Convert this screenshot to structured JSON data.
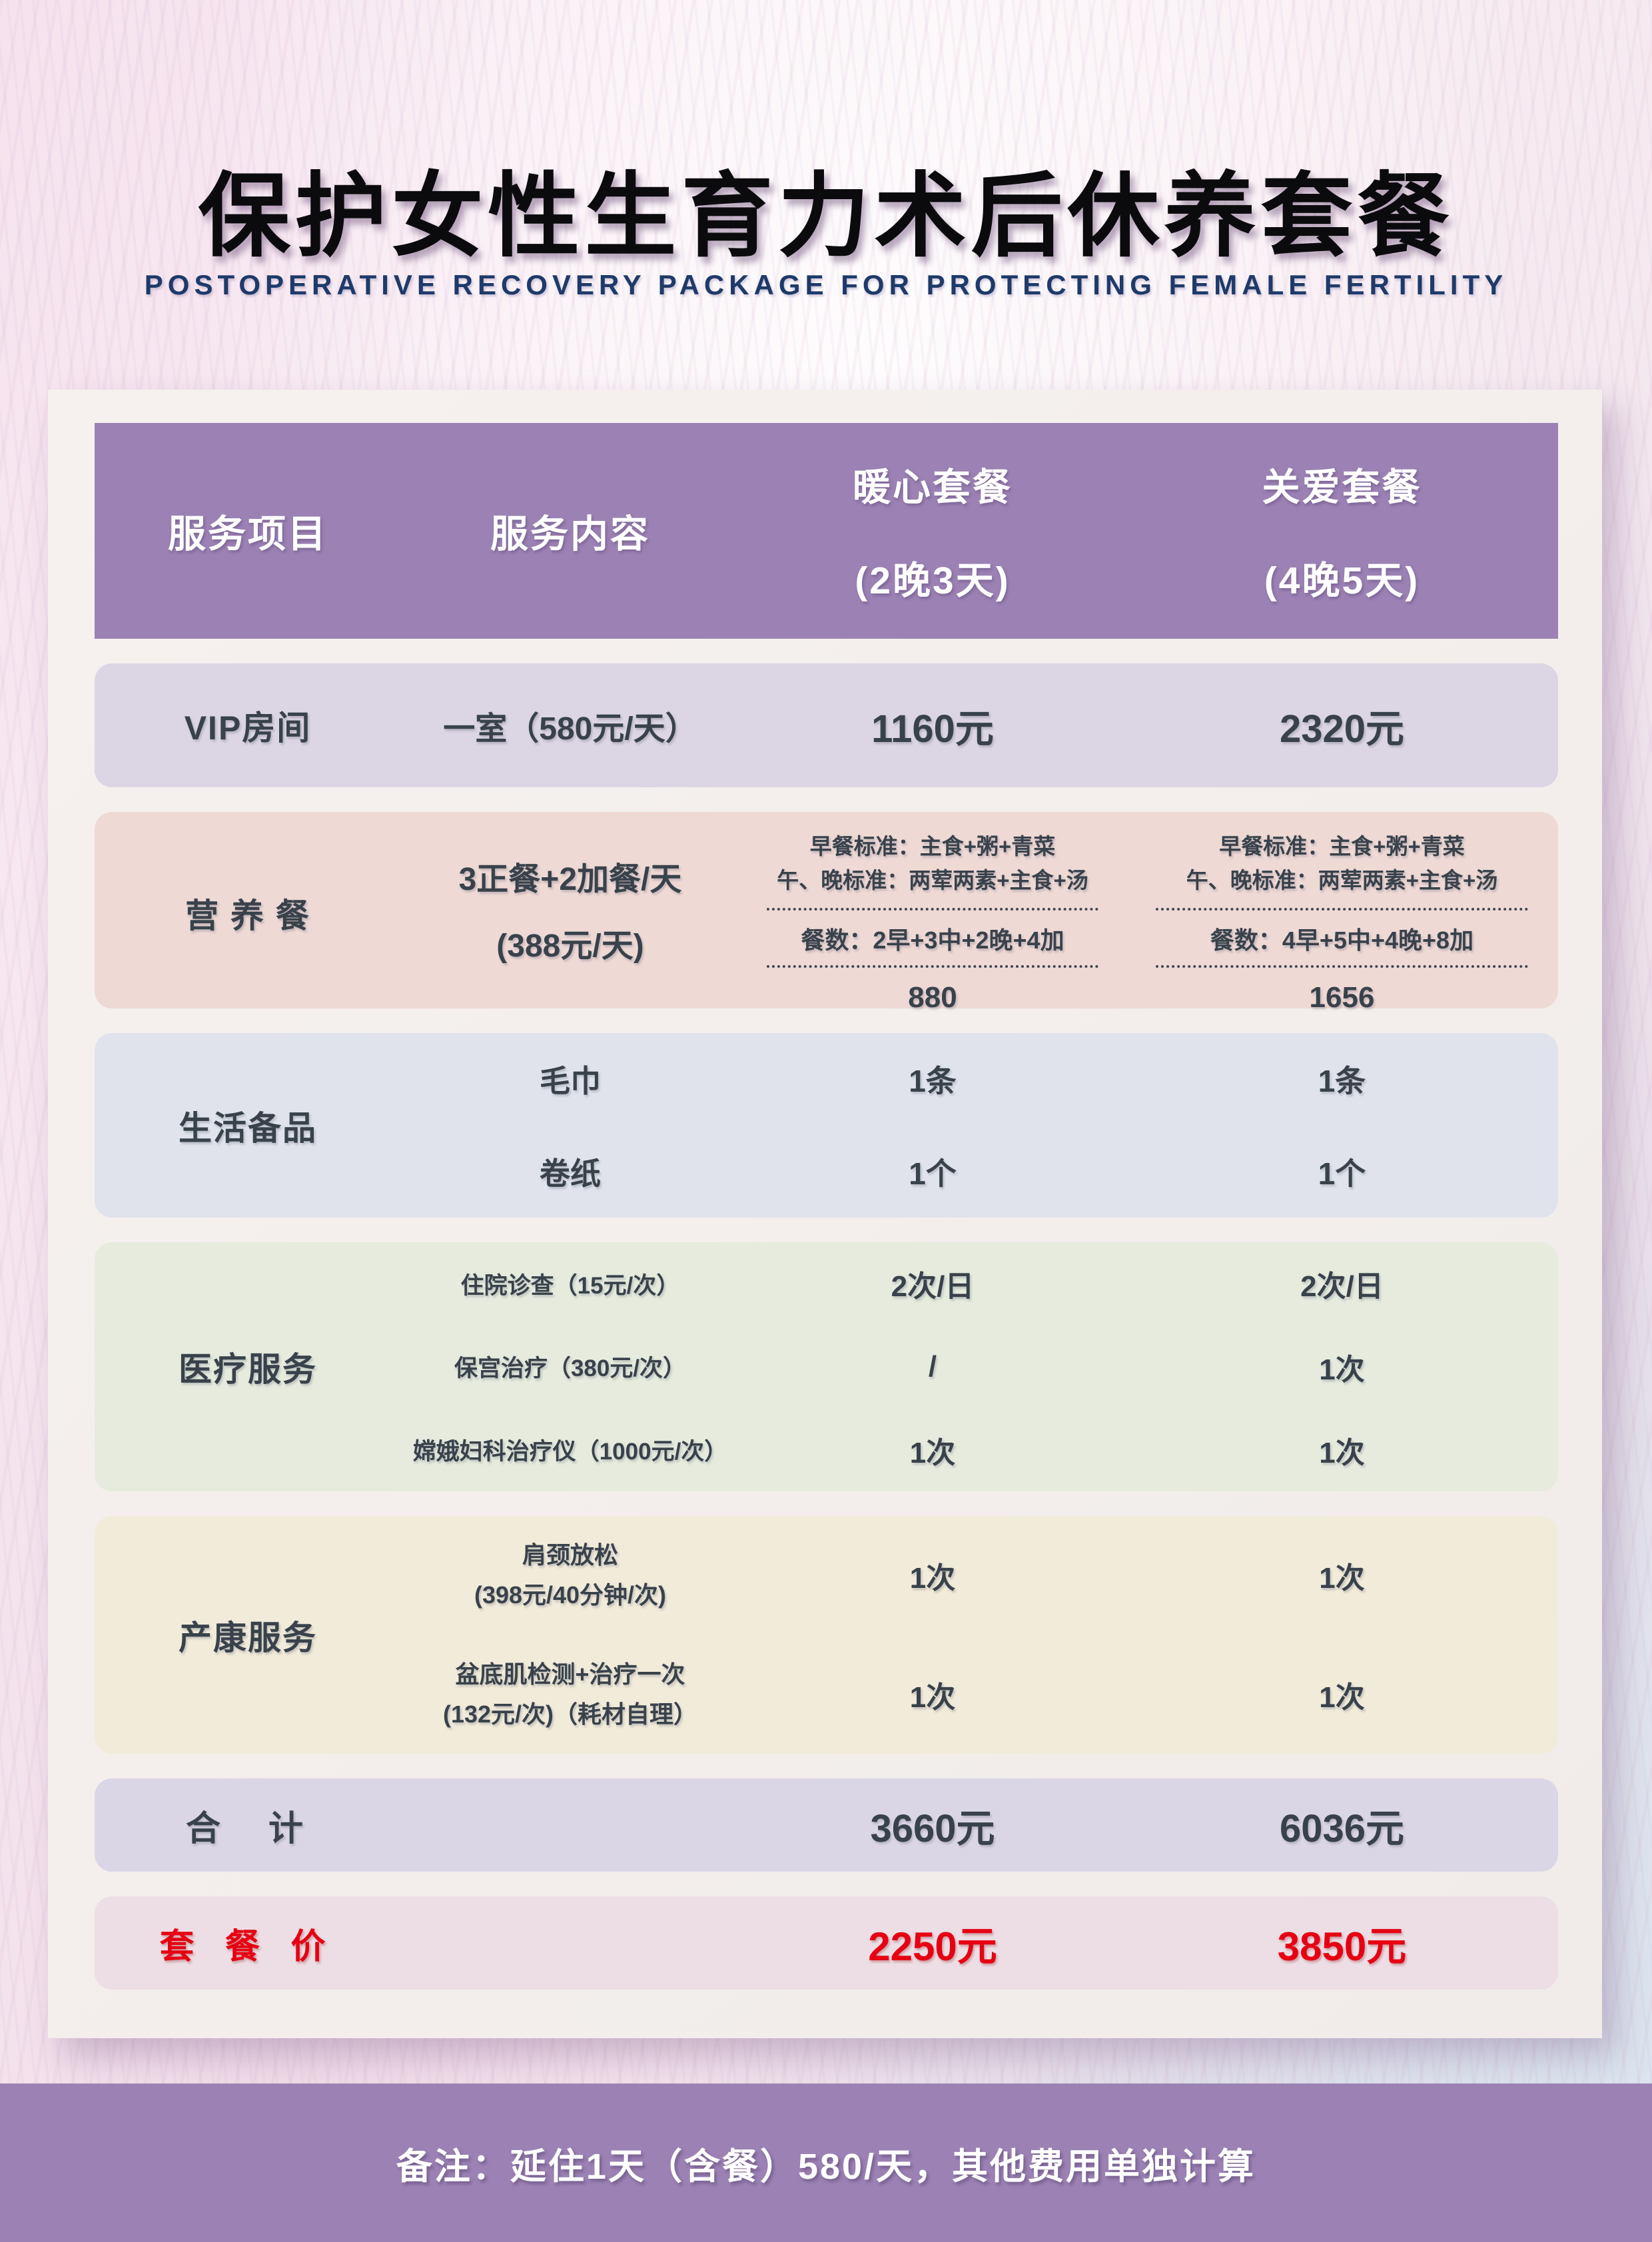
{
  "page": {
    "title": "保护女性生育力术后休养套餐",
    "subtitle": "POSTOPERATIVE RECOVERY PACKAGE FOR PROTECTING FEMALE FERTILITY",
    "note": "备注：延住1天（含餐）580/天，其他费用单独计算"
  },
  "colors": {
    "header_purple": "#9c82b4",
    "footer_purple": "#9c82b4",
    "accent_red": "#e60012",
    "text_dark": "#39424b",
    "subtitle_navy": "#1e3a69",
    "row_vip": "#dbd5e4",
    "row_meal": "#eed9d5",
    "row_daily": "#e0e3ec",
    "row_medical": "#e6ebde",
    "row_postpartum": "#f1ebda",
    "row_total": "#dbd6e6",
    "row_price": "#ecdee4"
  },
  "table": {
    "headers": [
      "服务项目",
      "服务内容",
      {
        "line1": "暖心套餐",
        "line2": "(2晚3天)"
      },
      {
        "line1": "关爱套餐",
        "line2": "(4晚5天)"
      }
    ],
    "rows": {
      "vip": {
        "label": "VIP房间",
        "content": "一室（580元/天）",
        "warm": "1160元",
        "care": "2320元"
      },
      "meal": {
        "label": "营 养 餐",
        "content_line1": "3正餐+2加餐/天",
        "content_line2": "(388元/天)",
        "warm": {
          "std1": "早餐标准：主食+粥+青菜",
          "std2": "午、晚标准：两荤两素+主食+汤",
          "count": "餐数：2早+3中+2晚+4加",
          "total": "880"
        },
        "care": {
          "std1": "早餐标准：主食+粥+青菜",
          "std2": "午、晚标准：两荤两素+主食+汤",
          "count": "餐数：4早+5中+4晚+8加",
          "total": "1656"
        }
      },
      "daily": {
        "label": "生活备品",
        "items": [
          {
            "content": "毛巾",
            "warm": "1条",
            "care": "1条"
          },
          {
            "content": "卷纸",
            "warm": "1个",
            "care": "1个"
          }
        ]
      },
      "medical": {
        "label": "医疗服务",
        "items": [
          {
            "content": "住院诊查（15元/次）",
            "warm": "2次/日",
            "care": "2次/日"
          },
          {
            "content": "保宫治疗（380元/次）",
            "warm": "/",
            "care": "1次"
          },
          {
            "content": "嫦娥妇科治疗仪（1000元/次）",
            "warm": "1次",
            "care": "1次"
          }
        ]
      },
      "postpartum": {
        "label": "产康服务",
        "items": [
          {
            "content_line1": "肩颈放松",
            "content_line2": "(398元/40分钟/次)",
            "warm": "1次",
            "care": "1次"
          },
          {
            "content_line1": "盆底肌检测+治疗一次",
            "content_line2": "(132元/次)（耗材自理）",
            "warm": "1次",
            "care": "1次"
          }
        ]
      },
      "total": {
        "label": "合　计",
        "warm": "3660元",
        "care": "6036元"
      },
      "price": {
        "label": "套 餐 价",
        "warm": "2250元",
        "care": "3850元"
      }
    }
  }
}
